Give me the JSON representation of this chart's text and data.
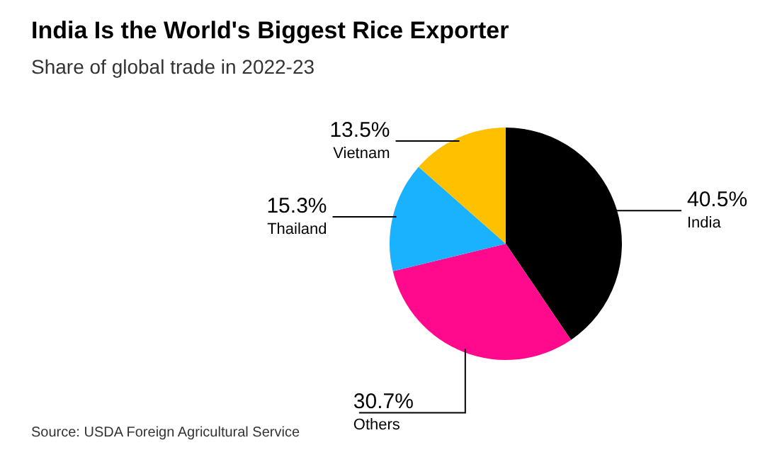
{
  "chart_data": {
    "type": "pie",
    "title": "India Is the World's Biggest Rice Exporter",
    "subtitle": "Share of global trade in 2022-23",
    "categories": [
      "India",
      "Others",
      "Thailand",
      "Vietnam"
    ],
    "values": [
      40.5,
      30.7,
      15.3,
      13.5
    ],
    "value_labels": [
      "40.5%",
      "30.7%",
      "15.3%",
      "13.5%"
    ],
    "colors": [
      "#000000",
      "#ff0a8c",
      "#1ab2ff",
      "#ffc000"
    ],
    "annotations": [
      "Source: USDA Foreign Agricultural Service"
    ]
  }
}
